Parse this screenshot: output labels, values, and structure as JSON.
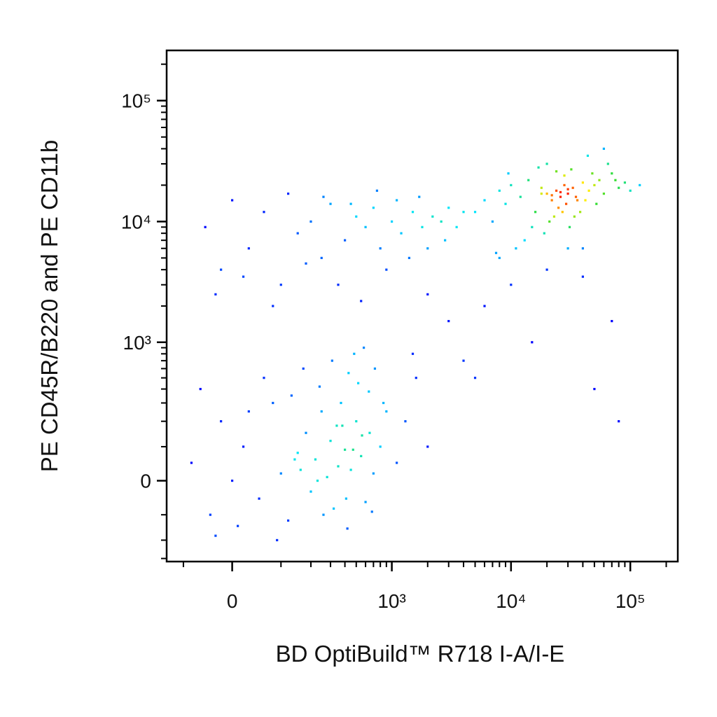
{
  "chart_data": {
    "type": "scatter",
    "xlabel": "BD OptiBuild™ R718 I-A/I-E",
    "ylabel": "PE CD45R/B220 and PE CD11b",
    "xscale": "biexponential",
    "yscale": "biexponential",
    "xlim": [
      -150,
      250000
    ],
    "ylim": [
      -320,
      260000
    ],
    "xticks": [
      0,
      {
        "value": 1000,
        "label": "10³"
      },
      {
        "value": 10000,
        "label": "10⁴"
      },
      {
        "value": 100000,
        "label": "10⁵"
      }
    ],
    "yticks": [
      0,
      {
        "value": 1000,
        "label": "10³"
      },
      {
        "value": 10000,
        "label": "10⁴"
      },
      {
        "value": 100000,
        "label": "10⁵"
      }
    ],
    "xminorticks": [
      -100,
      100,
      200,
      300,
      400,
      500,
      600,
      700,
      800,
      900,
      2000,
      3000,
      4000,
      5000,
      6000,
      7000,
      8000,
      9000,
      20000,
      30000,
      40000,
      50000,
      60000,
      70000,
      80000,
      90000,
      200000
    ],
    "yminorticks": [
      -300,
      -200,
      -100,
      100,
      200,
      300,
      400,
      500,
      600,
      700,
      800,
      900,
      2000,
      3000,
      4000,
      5000,
      6000,
      7000,
      8000,
      9000,
      20000,
      30000,
      40000,
      50000,
      60000,
      70000,
      80000,
      90000,
      200000
    ],
    "colormap": [
      "#0000ff",
      "#00e5ff",
      "#33dd33",
      "#ffee00",
      "#ff2200"
    ],
    "x": [
      -80,
      -40,
      -20,
      0,
      20,
      50,
      80,
      100,
      120,
      150,
      180,
      200,
      220,
      250,
      280,
      300,
      320,
      350,
      380,
      400,
      420,
      450,
      500,
      550,
      600,
      650,
      700,
      800,
      900,
      1100,
      -60,
      10,
      60,
      130,
      170,
      240,
      310,
      370,
      430,
      480,
      520,
      580,
      640,
      720,
      -30,
      30,
      90,
      160,
      260,
      340,
      410,
      470,
      560,
      680,
      850,
      1300,
      1600,
      2000,
      140,
      230,
      -50,
      -20,
      0,
      30,
      60,
      100,
      150,
      200,
      250,
      300,
      400,
      500,
      600,
      700,
      800,
      1000,
      1200,
      1500,
      1800,
      2200,
      2600,
      3000,
      3500,
      4000,
      -30,
      20,
      80,
      180,
      350,
      550,
      900,
      1400,
      2000,
      2800,
      120,
      260,
      450,
      750,
      1100,
      1700,
      5000,
      6000,
      7000,
      8000,
      9000,
      10000,
      12000,
      14000,
      16000,
      18000,
      20000,
      22000,
      24000,
      26000,
      28000,
      30000,
      33000,
      36000,
      40000,
      45000,
      50000,
      55000,
      60000,
      70000,
      80000,
      90000,
      100000,
      120000,
      15000,
      19000,
      21000,
      23000,
      25000,
      27000,
      29000,
      31000,
      34000,
      38000,
      42000,
      48000,
      17000,
      20000,
      24000,
      28000,
      32000,
      11000,
      13000,
      35000,
      65000,
      75000,
      9500,
      44000,
      26000,
      22000,
      30000,
      18000,
      52000,
      60000,
      7500,
      40000,
      1500,
      3000,
      6000,
      10000,
      20000,
      40000,
      70000,
      80000,
      2000,
      5000,
      15000,
      30000,
      4000,
      8000,
      50000
    ],
    "y": [
      50,
      -100,
      200,
      0,
      100,
      -50,
      300,
      20,
      -120,
      80,
      150,
      -30,
      60,
      250,
      10,
      120,
      -80,
      40,
      180,
      90,
      -150,
      30,
      200,
      70,
      -60,
      150,
      20,
      100,
      250,
      50,
      400,
      -140,
      500,
      350,
      600,
      420,
      700,
      300,
      550,
      800,
      450,
      900,
      380,
      600,
      -180,
      250,
      -200,
      30,
      -100,
      180,
      -50,
      90,
      140,
      -90,
      300,
      200,
      500,
      100,
      60,
      0,
      9000,
      4000,
      15000,
      6000,
      12000,
      3000,
      8000,
      10000,
      5000,
      14000,
      7000,
      11000,
      9000,
      13000,
      6000,
      10000,
      8000,
      12000,
      9000,
      11000,
      10000,
      13000,
      9000,
      12000,
      2500,
      3500,
      2000,
      4500,
      3000,
      2200,
      4000,
      5000,
      6000,
      7000,
      17000,
      16000,
      14000,
      18000,
      15000,
      16000,
      12000,
      15000,
      10000,
      18000,
      14000,
      20000,
      16000,
      22000,
      12000,
      19000,
      17000,
      15000,
      18000,
      16000,
      20000,
      17000,
      19000,
      15000,
      21000,
      18000,
      20000,
      22000,
      17000,
      25000,
      19000,
      21000,
      18000,
      20000,
      9000,
      8000,
      10000,
      11000,
      13000,
      12000,
      14000,
      9000,
      11000,
      12000,
      15000,
      25000,
      28000,
      30000,
      26000,
      24000,
      27000,
      6000,
      7000,
      16000,
      30000,
      22000,
      25000,
      35000,
      17500,
      16500,
      18500,
      17000,
      14000,
      40000,
      5500,
      6000,
      800,
      1500,
      2000,
      3000,
      4000,
      3500,
      1500,
      200,
      2500,
      500,
      1000,
      6000,
      700,
      5000,
      400
    ]
  }
}
